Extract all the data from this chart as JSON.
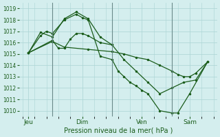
{
  "xlabel": "Pression niveau de la mer( hPa )",
  "bg_color": "#d4eeee",
  "grid_color": "#aad4d4",
  "line_color": "#1a5c1a",
  "vline_color": "#6a8a8a",
  "ylim": [
    1009.5,
    1019.5
  ],
  "xlim": [
    -0.3,
    16.3
  ],
  "day_labels": [
    "Jeu",
    "Dim",
    "Ven",
    "Sam"
  ],
  "day_positions": [
    0.5,
    5.0,
    10.0,
    14.0
  ],
  "vline_positions": [
    2.5,
    7.5,
    12.5
  ],
  "line1_x": [
    0.5,
    1.5,
    2.0,
    2.5,
    3.5,
    4.5,
    5.0,
    5.5,
    6.5,
    7.5,
    8.0,
    8.5,
    9.0,
    9.5,
    10.0,
    10.5,
    11.5,
    12.5,
    13.0,
    14.0,
    15.5
  ],
  "line1_y": [
    1015.1,
    1016.6,
    1017.0,
    1016.8,
    1018.0,
    1018.5,
    1018.2,
    1018.0,
    1014.8,
    1014.5,
    1013.5,
    1013.0,
    1012.5,
    1012.2,
    1011.8,
    1011.5,
    1010.0,
    1009.8,
    1009.8,
    1011.5,
    1014.3
  ],
  "line2_x": [
    0.5,
    1.5,
    2.5,
    3.5,
    4.5,
    5.5,
    6.5,
    7.5,
    8.5,
    9.5,
    10.5,
    11.5,
    12.5,
    13.5,
    14.5,
    15.5
  ],
  "line2_y": [
    1015.1,
    1016.9,
    1016.5,
    1018.1,
    1018.7,
    1018.1,
    1016.5,
    1015.8,
    1014.5,
    1013.5,
    1012.5,
    1011.5,
    1012.0,
    1012.5,
    1012.7,
    1014.3
  ],
  "line3_x": [
    0.5,
    2.5,
    3.0,
    3.5,
    4.0,
    4.5,
    5.0,
    5.5,
    6.5,
    7.5
  ],
  "line3_y": [
    1015.1,
    1016.2,
    1015.5,
    1015.5,
    1016.3,
    1016.8,
    1016.8,
    1016.6,
    1016.0,
    1015.8
  ],
  "line4_x": [
    0.5,
    2.5,
    3.5,
    5.5,
    7.5,
    8.5,
    9.5,
    10.5,
    11.5,
    12.5,
    13.0,
    13.5,
    14.0,
    14.5,
    15.5
  ],
  "line4_y": [
    1015.1,
    1016.1,
    1015.6,
    1015.4,
    1015.2,
    1015.0,
    1014.7,
    1014.5,
    1014.0,
    1013.5,
    1013.2,
    1013.0,
    1013.0,
    1013.3,
    1014.3
  ]
}
